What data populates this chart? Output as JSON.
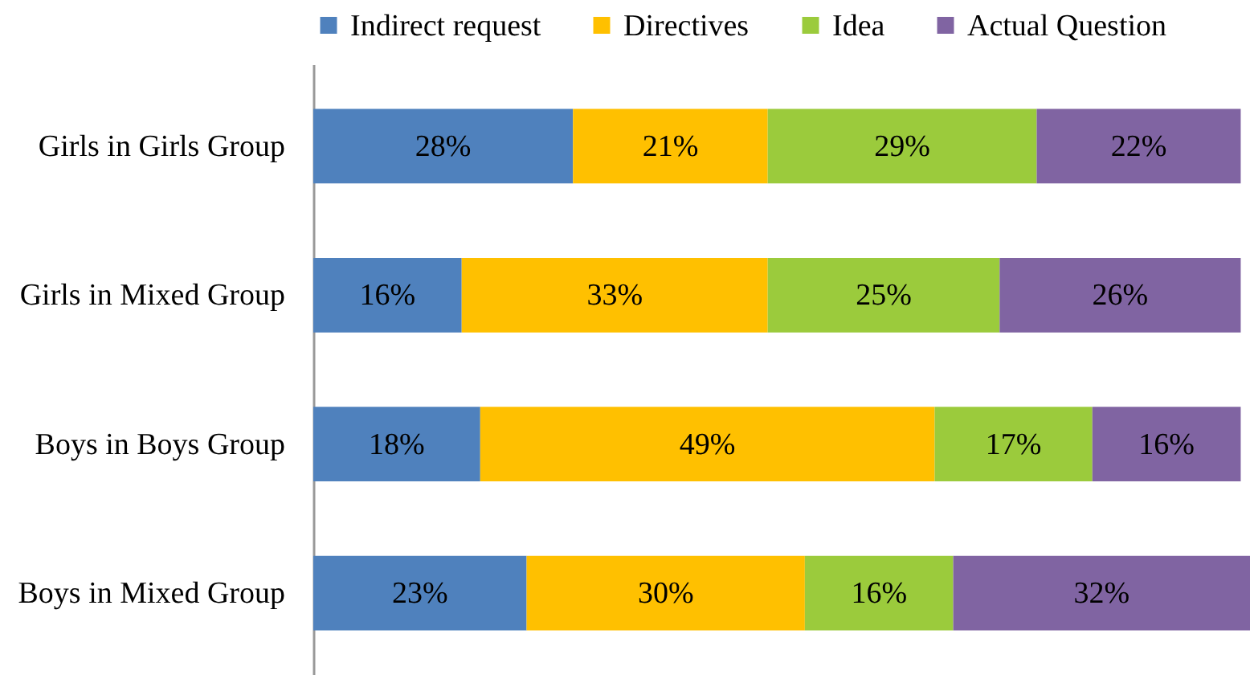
{
  "chart_data": {
    "type": "bar",
    "orientation": "horizontal",
    "stacked": true,
    "legend": "top",
    "grid": false,
    "tick_labels": "y",
    "categories": [
      "Girls in Girls Group",
      "Girls in Mixed Group",
      "Boys in Boys Group",
      "Boys in Mixed Group"
    ],
    "series": [
      {
        "name": "Indirect request",
        "color": "#4f81bd",
        "values": [
          28,
          16,
          18,
          23
        ],
        "value_labels": [
          "28%",
          "16%",
          "18%",
          "23%"
        ]
      },
      {
        "name": "Directives",
        "color": "#ffc000",
        "values": [
          21,
          33,
          49,
          30
        ],
        "value_labels": [
          "21%",
          "33%",
          "49%",
          "30%"
        ]
      },
      {
        "name": "Idea",
        "color": "#9bcb3c",
        "values": [
          29,
          25,
          17,
          16
        ],
        "value_labels": [
          "29%",
          "25%",
          "17%",
          "16%"
        ]
      },
      {
        "name": "Actual Question",
        "color": "#8064a2",
        "values": [
          22,
          26,
          16,
          32
        ],
        "value_labels": [
          "22%",
          "26%",
          "16%",
          "32%"
        ]
      }
    ]
  }
}
